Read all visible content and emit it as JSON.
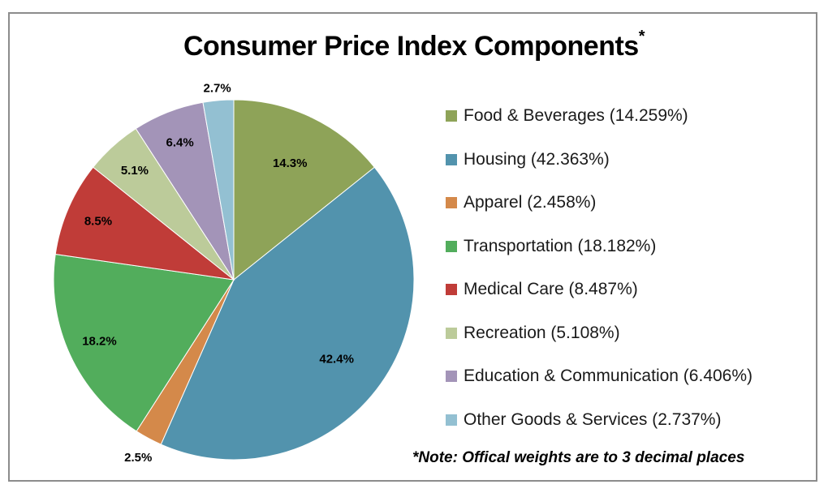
{
  "chart_data": {
    "type": "pie",
    "title": "Consumer Price Index Components",
    "title_marker": "*",
    "start_angle": "12 o'clock",
    "direction": "clockwise",
    "slices": [
      {
        "name": "Food & Beverages",
        "value": 14.259,
        "label": "14.3%",
        "legend": "Food & Beverages (14.259%)",
        "color": "#8ea358"
      },
      {
        "name": "Housing",
        "value": 42.363,
        "label": "42.4%",
        "legend": "Housing (42.363%)",
        "color": "#5293ad"
      },
      {
        "name": "Apparel",
        "value": 2.458,
        "label": "2.5%",
        "legend": "Apparel (2.458%)",
        "color": "#d4894a"
      },
      {
        "name": "Transportation",
        "value": 18.182,
        "label": "18.2%",
        "legend": "Transportation (18.182%)",
        "color": "#52ad5c"
      },
      {
        "name": "Medical Care",
        "value": 8.487,
        "label": "8.5%",
        "legend": "Medical Care (8.487%)",
        "color": "#c03c38"
      },
      {
        "name": "Recreation",
        "value": 5.108,
        "label": "5.1%",
        "legend": "Recreation (5.108%)",
        "color": "#bccb9a"
      },
      {
        "name": "Education & Communication",
        "value": 6.406,
        "label": "6.4%",
        "legend": "Education & Communication (6.406%)",
        "color": "#a394b8"
      },
      {
        "name": "Other Goods & Services",
        "value": 2.737,
        "label": "2.7%",
        "legend": "Other Goods & Services (2.737%)",
        "color": "#93c0d2"
      }
    ],
    "legend_position": "right",
    "note": "*Note: Offical weights are to 3 decimal places"
  }
}
